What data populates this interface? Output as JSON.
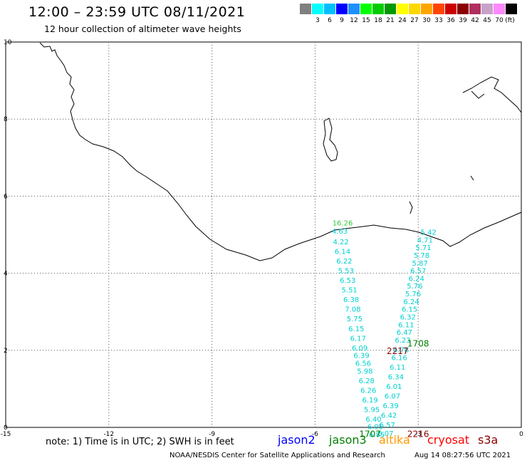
{
  "header": {
    "title": "12:00 – 23:59 UTC 08/11/2021",
    "subtitle": "12 hour collection of altimeter wave heights"
  },
  "color_scale": {
    "unit": "(ft)",
    "swatches": [
      {
        "color": "#808080",
        "label": ""
      },
      {
        "color": "#00ffff",
        "label": "3"
      },
      {
        "color": "#00bfff",
        "label": "6"
      },
      {
        "color": "#0000ff",
        "label": "9"
      },
      {
        "color": "#1e90ff",
        "label": "12"
      },
      {
        "color": "#00ff00",
        "label": "15"
      },
      {
        "color": "#00cc00",
        "label": "18"
      },
      {
        "color": "#009900",
        "label": "21"
      },
      {
        "color": "#ffff00",
        "label": "24"
      },
      {
        "color": "#ffd700",
        "label": "27"
      },
      {
        "color": "#ffa500",
        "label": "30"
      },
      {
        "color": "#ff4500",
        "label": "33"
      },
      {
        "color": "#cc0000",
        "label": "36"
      },
      {
        "color": "#8b0000",
        "label": "39"
      },
      {
        "color": "#b03060",
        "label": "42"
      },
      {
        "color": "#c8a2c8",
        "label": "45"
      },
      {
        "color": "#ff88ff",
        "label": "70"
      },
      {
        "color": "#000000",
        "label": ""
      }
    ]
  },
  "axes": {
    "x_ticks": [
      "-15",
      "-12",
      "-9",
      "-6",
      "-3",
      "0"
    ],
    "y_ticks": [
      "0",
      "2",
      "4",
      "6",
      "8",
      "10"
    ]
  },
  "tracks": {
    "west": [
      {
        "lon": -5.2,
        "lat": 5.24,
        "v": "16.26",
        "color": "#33cc33"
      },
      {
        "lon": -5.28,
        "lat": 5.03,
        "v": "4.63",
        "color": "#00d0d0"
      },
      {
        "lon": -5.25,
        "lat": 4.75,
        "v": "4.22",
        "color": "#00d0d0"
      },
      {
        "lon": -5.2,
        "lat": 4.5,
        "v": "6.14",
        "color": "#00d0d0"
      },
      {
        "lon": -5.15,
        "lat": 4.25,
        "v": "6.22",
        "color": "#00d0d0"
      },
      {
        "lon": -5.1,
        "lat": 4.0,
        "v": "5.53",
        "color": "#00d0d0"
      },
      {
        "lon": -5.05,
        "lat": 3.75,
        "v": "6.53",
        "color": "#00d0d0"
      },
      {
        "lon": -5.0,
        "lat": 3.5,
        "v": "5.51",
        "color": "#00d0d0"
      },
      {
        "lon": -4.95,
        "lat": 3.25,
        "v": "6.38",
        "color": "#00d0d0"
      },
      {
        "lon": -4.9,
        "lat": 3.0,
        "v": "7.08",
        "color": "#00d0d0"
      },
      {
        "lon": -4.85,
        "lat": 2.75,
        "v": "5.75",
        "color": "#00d0d0"
      },
      {
        "lon": -4.8,
        "lat": 2.5,
        "v": "6.15",
        "color": "#00d0d0"
      },
      {
        "lon": -4.75,
        "lat": 2.25,
        "v": "6.17",
        "color": "#00d0d0"
      },
      {
        "lon": -4.7,
        "lat": 2.0,
        "v": "6.09",
        "color": "#00d0d0"
      },
      {
        "lon": -4.65,
        "lat": 1.8,
        "v": "6.39",
        "color": "#00d0d0"
      },
      {
        "lon": -4.6,
        "lat": 1.6,
        "v": "6.56",
        "color": "#00d0d0"
      },
      {
        "lon": -4.55,
        "lat": 1.4,
        "v": "5.98",
        "color": "#00d0d0"
      },
      {
        "lon": -4.5,
        "lat": 1.15,
        "v": "6.28",
        "color": "#00d0d0"
      },
      {
        "lon": -4.45,
        "lat": 0.9,
        "v": "6.26",
        "color": "#00d0d0"
      },
      {
        "lon": -4.4,
        "lat": 0.65,
        "v": "6.19",
        "color": "#00d0d0"
      },
      {
        "lon": -4.35,
        "lat": 0.4,
        "v": "5.95",
        "color": "#00d0d0"
      },
      {
        "lon": -4.3,
        "lat": 0.15,
        "v": "6.40",
        "color": "#00d0d0"
      },
      {
        "lon": -4.25,
        "lat": -0.05,
        "v": "6.05",
        "color": "#00d0d0"
      },
      {
        "lon": -4.2,
        "lat": -0.25,
        "v": "6.85",
        "color": "#00d0d0"
      }
    ],
    "east": [
      {
        "lon": -2.7,
        "lat": 5.0,
        "v": "5.42",
        "color": "#00d0d0"
      },
      {
        "lon": -2.8,
        "lat": 4.8,
        "v": "4.71",
        "color": "#00d0d0"
      },
      {
        "lon": -2.85,
        "lat": 4.6,
        "v": "5.71",
        "color": "#00d0d0"
      },
      {
        "lon": -2.9,
        "lat": 4.4,
        "v": "5.78",
        "color": "#00d0d0"
      },
      {
        "lon": -2.95,
        "lat": 4.2,
        "v": "5.87",
        "color": "#00d0d0"
      },
      {
        "lon": -3.0,
        "lat": 4.0,
        "v": "6.57",
        "color": "#00d0d0"
      },
      {
        "lon": -3.05,
        "lat": 3.8,
        "v": "6.24",
        "color": "#00d0d0"
      },
      {
        "lon": -3.1,
        "lat": 3.6,
        "v": "5.76",
        "color": "#00d0d0"
      },
      {
        "lon": -3.15,
        "lat": 3.4,
        "v": "5.76",
        "color": "#00d0d0"
      },
      {
        "lon": -3.2,
        "lat": 3.2,
        "v": "6.24",
        "color": "#00d0d0"
      },
      {
        "lon": -3.25,
        "lat": 3.0,
        "v": "6.15",
        "color": "#00d0d0"
      },
      {
        "lon": -3.3,
        "lat": 2.8,
        "v": "6.32",
        "color": "#00d0d0"
      },
      {
        "lon": -3.35,
        "lat": 2.6,
        "v": "6.11",
        "color": "#00d0d0"
      },
      {
        "lon": -3.4,
        "lat": 2.4,
        "v": "6.47",
        "color": "#00d0d0"
      },
      {
        "lon": -3.45,
        "lat": 2.2,
        "v": "6.23",
        "color": "#00d0d0"
      },
      {
        "lon": -3.5,
        "lat": 1.95,
        "v": "6.78",
        "color": "#00d0d0"
      },
      {
        "lon": -3.55,
        "lat": 1.75,
        "v": "6.16",
        "color": "#00d0d0"
      },
      {
        "lon": -3.6,
        "lat": 1.5,
        "v": "6.11",
        "color": "#00d0d0"
      },
      {
        "lon": -3.65,
        "lat": 1.25,
        "v": "6.34",
        "color": "#00d0d0"
      },
      {
        "lon": -3.7,
        "lat": 1.0,
        "v": "6.01",
        "color": "#00d0d0"
      },
      {
        "lon": -3.75,
        "lat": 0.75,
        "v": "6.07",
        "color": "#00d0d0"
      },
      {
        "lon": -3.8,
        "lat": 0.5,
        "v": "6.39",
        "color": "#00d0d0"
      },
      {
        "lon": -3.85,
        "lat": 0.25,
        "v": "6.42",
        "color": "#00d0d0"
      },
      {
        "lon": -3.9,
        "lat": 0.0,
        "v": "6.57",
        "color": "#00d0d0"
      },
      {
        "lon": -3.95,
        "lat": -0.22,
        "v": "6.07",
        "color": "#00d0d0"
      }
    ],
    "time_labels": [
      {
        "lon": -3.0,
        "lat": 2.1,
        "text": "1708",
        "color": "#008000"
      },
      {
        "lon": -3.6,
        "lat": 1.9,
        "text": "2217",
        "color": "#8b0000"
      },
      {
        "lon": -4.4,
        "lat": -0.25,
        "text": "1707",
        "color": "#008000"
      },
      {
        "lon": -3.0,
        "lat": -0.25,
        "text": "2216",
        "color": "#8b0000"
      }
    ]
  },
  "note": "note: 1) Time is in UTC; 2) SWH is in feet",
  "satellites": [
    {
      "name": "jason2",
      "color": "#0000ff"
    },
    {
      "name": "jason3",
      "color": "#008000"
    },
    {
      "name": "altika",
      "color": "#ff9900"
    },
    {
      "name": "cryosat",
      "color": "#ff0000"
    },
    {
      "name": "s3a",
      "color": "#8b0000"
    }
  ],
  "credit": "NOAA/NESDIS Center for Satellite Applications and Research",
  "timestamp": "Aug 14 08:27:56 UTC 2021"
}
